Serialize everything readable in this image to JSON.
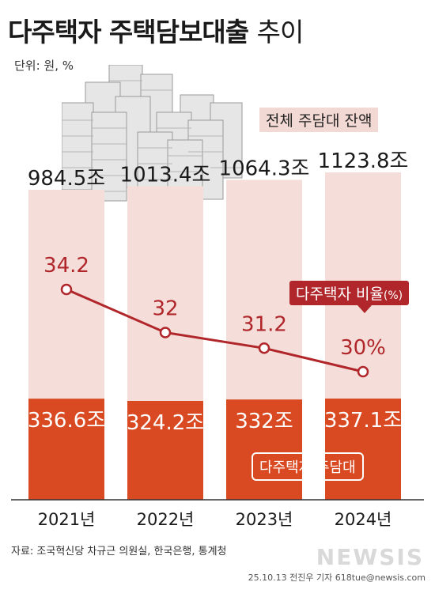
{
  "header": {
    "title_main": "다주택자 주택담보대출",
    "title_sub": "추이",
    "unit": "단위: 원, %"
  },
  "legend": {
    "total": "전체 주담대 잔액",
    "multi": "다주택자 주담대",
    "ratio": "다주택자 비율",
    "ratio_unit": "(%)"
  },
  "colors": {
    "total_bar": "#f5ded9",
    "multi_bar": "#d94a22",
    "line": "#b0262a",
    "text_dark": "#1a1a1a"
  },
  "chart_data": {
    "type": "bar",
    "categories": [
      "2021년",
      "2022년",
      "2023년",
      "2024년"
    ],
    "series": [
      {
        "name": "전체 주담대 잔액",
        "values": [
          984.5,
          1013.4,
          1064.3,
          1123.8
        ],
        "labels": [
          "984.5조",
          "1013.4조",
          "1064.3조",
          "1123.8조"
        ]
      },
      {
        "name": "다주택자 주담대",
        "values": [
          336.6,
          324.2,
          332,
          337.1
        ],
        "labels": [
          "336.6조",
          "324.2조",
          "332조",
          "337.1조"
        ]
      },
      {
        "name": "다주택자 비율",
        "type": "line",
        "values": [
          34.2,
          32,
          31.2,
          30
        ],
        "labels": [
          "34.2",
          "32",
          "31.2",
          "30%"
        ]
      }
    ]
  },
  "footer": {
    "source": "자료: 조국혁신당 차규근 의원실, 한국은행, 통계청",
    "credit": "25.10.13 전진우 기자 618tue@newsis.com",
    "watermark": "NEWSIS"
  }
}
